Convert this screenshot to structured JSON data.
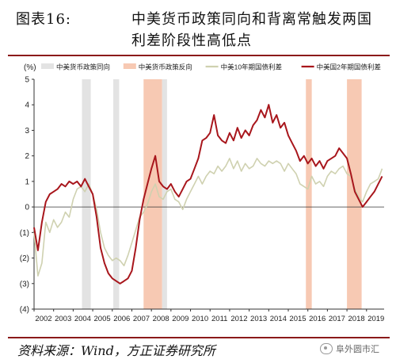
{
  "header": {
    "prefix": "图表16:",
    "title_line1": "中美货币政策同向和背离常触发两国",
    "title_line2": "利差阶段性高低点"
  },
  "footer": {
    "source": "资料来源：Wind，方正证券研究所",
    "watermark": "阜外圆市汇"
  },
  "colors": {
    "same_direction_band": "#e3e3e3",
    "opposite_direction_band": "#f7c9b3",
    "us10y_line": "#cfd1b0",
    "us2y_line": "#a8161c",
    "rule": "#8b1a1a"
  },
  "chart_data": {
    "type": "line",
    "ylabel": "(%)",
    "ylim": [
      -4,
      5
    ],
    "yticks": [
      -4,
      -3,
      -2,
      -1,
      0,
      1,
      2,
      3,
      4,
      5
    ],
    "ytick_labels": [
      "(4)",
      "(3)",
      "(2)",
      "(1)",
      "0",
      "1",
      "2",
      "3",
      "4",
      "5"
    ],
    "xlim": [
      2002.0,
      2019.9
    ],
    "xticks": [
      2002,
      2003,
      2004,
      2005,
      2006,
      2007,
      2008,
      2009,
      2010,
      2011,
      2012,
      2013,
      2014,
      2015,
      2016,
      2017,
      2018,
      2019
    ],
    "xtick_labels": [
      "2002",
      "2003",
      "2004",
      "2005",
      "2006",
      "2007",
      "2008",
      "2009",
      "2010",
      "2011",
      "2012",
      "2013",
      "2014",
      "2015",
      "2016",
      "2017",
      "2018",
      "2019"
    ],
    "legend": [
      {
        "label": "中美货币政策同向",
        "kind": "band",
        "color": "#e3e3e3"
      },
      {
        "label": "中美货币政策反向",
        "kind": "band",
        "color": "#f7c9b3"
      },
      {
        "label": "中美10年期国债利差",
        "kind": "line",
        "color": "#cfd1b0"
      },
      {
        "label": "中美国2年期国债利差",
        "kind": "line",
        "color": "#a8161c"
      }
    ],
    "legend_position": "top",
    "bands": [
      {
        "type": "same",
        "from": 2004.45,
        "to": 2004.9
      },
      {
        "type": "same",
        "from": 2006.05,
        "to": 2006.35
      },
      {
        "type": "opposite",
        "from": 2007.6,
        "to": 2008.55
      },
      {
        "type": "same",
        "from": 2008.55,
        "to": 2008.8
      },
      {
        "type": "opposite",
        "from": 2015.9,
        "to": 2016.2
      },
      {
        "type": "opposite",
        "from": 2018.0,
        "to": 2018.75
      }
    ],
    "series": [
      {
        "name": "中美10年期国债利差",
        "color": "#cfd1b0",
        "x": [
          2002.0,
          2002.2,
          2002.4,
          2002.6,
          2002.8,
          2003.0,
          2003.2,
          2003.4,
          2003.6,
          2003.8,
          2004.0,
          2004.2,
          2004.4,
          2004.6,
          2004.8,
          2005.0,
          2005.2,
          2005.4,
          2005.6,
          2005.8,
          2006.0,
          2006.2,
          2006.4,
          2006.6,
          2006.8,
          2007.0,
          2007.2,
          2007.4,
          2007.6,
          2007.8,
          2008.0,
          2008.2,
          2008.4,
          2008.6,
          2008.8,
          2009.0,
          2009.2,
          2009.4,
          2009.6,
          2009.8,
          2010.0,
          2010.2,
          2010.4,
          2010.6,
          2010.8,
          2011.0,
          2011.2,
          2011.4,
          2011.6,
          2011.8,
          2012.0,
          2012.2,
          2012.4,
          2012.6,
          2012.8,
          2013.0,
          2013.2,
          2013.4,
          2013.6,
          2013.8,
          2014.0,
          2014.2,
          2014.4,
          2014.6,
          2014.8,
          2015.0,
          2015.2,
          2015.4,
          2015.6,
          2015.8,
          2016.0,
          2016.2,
          2016.4,
          2016.6,
          2016.8,
          2017.0,
          2017.2,
          2017.4,
          2017.6,
          2017.8,
          2018.0,
          2018.2,
          2018.4,
          2018.6,
          2018.8,
          2019.0,
          2019.2,
          2019.4,
          2019.6,
          2019.8
        ],
        "y": [
          -1.0,
          -2.7,
          -2.2,
          -0.6,
          -1.0,
          -0.5,
          -0.8,
          -0.6,
          -0.2,
          -0.4,
          0.3,
          0.7,
          0.8,
          0.6,
          0.9,
          0.5,
          -0.1,
          -1.0,
          -1.6,
          -1.9,
          -2.1,
          -2.0,
          -2.1,
          -2.3,
          -1.9,
          -1.4,
          -0.9,
          -0.4,
          -0.2,
          0.1,
          0.6,
          0.9,
          0.4,
          0.3,
          0.6,
          0.7,
          0.3,
          0.2,
          -0.1,
          0.3,
          0.6,
          0.9,
          1.2,
          0.9,
          1.2,
          1.4,
          1.3,
          1.6,
          1.4,
          1.6,
          1.9,
          1.5,
          1.8,
          1.4,
          1.7,
          1.5,
          1.6,
          1.9,
          1.7,
          1.6,
          1.8,
          1.7,
          1.8,
          1.7,
          1.4,
          1.7,
          1.5,
          1.3,
          0.9,
          0.8,
          0.7,
          1.2,
          0.9,
          1.0,
          0.8,
          1.2,
          1.4,
          1.3,
          1.5,
          1.6,
          1.3,
          1.2,
          0.7,
          0.4,
          0.2,
          0.6,
          0.9,
          1.0,
          1.1,
          1.5
        ]
      },
      {
        "name": "中美国2年期国债利差",
        "color": "#a8161c",
        "x": [
          2002.0,
          2002.2,
          2002.4,
          2002.6,
          2002.8,
          2003.0,
          2003.2,
          2003.4,
          2003.6,
          2003.8,
          2004.0,
          2004.2,
          2004.4,
          2004.6,
          2004.8,
          2005.0,
          2005.2,
          2005.4,
          2005.6,
          2005.8,
          2006.0,
          2006.2,
          2006.4,
          2006.6,
          2006.8,
          2007.0,
          2007.2,
          2007.4,
          2007.6,
          2007.8,
          2008.0,
          2008.2,
          2008.4,
          2008.6,
          2008.8,
          2009.0,
          2009.2,
          2009.4,
          2009.6,
          2009.8,
          2010.0,
          2010.2,
          2010.4,
          2010.6,
          2010.8,
          2011.0,
          2011.2,
          2011.4,
          2011.6,
          2011.8,
          2012.0,
          2012.2,
          2012.4,
          2012.6,
          2012.8,
          2013.0,
          2013.2,
          2013.4,
          2013.6,
          2013.8,
          2014.0,
          2014.2,
          2014.4,
          2014.6,
          2014.8,
          2015.0,
          2015.2,
          2015.4,
          2015.6,
          2015.8,
          2016.0,
          2016.2,
          2016.4,
          2016.6,
          2016.8,
          2017.0,
          2017.2,
          2017.4,
          2017.6,
          2017.8,
          2018.0,
          2018.2,
          2018.4,
          2018.6,
          2018.8,
          2019.0,
          2019.2,
          2019.4,
          2019.6,
          2019.8
        ],
        "y": [
          -0.8,
          -1.7,
          -0.6,
          0.2,
          0.5,
          0.6,
          0.7,
          0.9,
          0.8,
          1.0,
          0.9,
          1.0,
          0.8,
          1.1,
          0.8,
          0.5,
          -0.4,
          -1.6,
          -2.2,
          -2.6,
          -2.8,
          -2.9,
          -3.0,
          -2.9,
          -2.8,
          -2.5,
          -1.6,
          -0.5,
          0.3,
          0.9,
          1.5,
          2.0,
          1.0,
          0.8,
          0.7,
          0.9,
          0.6,
          0.4,
          0.7,
          1.0,
          1.1,
          1.5,
          1.9,
          2.6,
          2.7,
          2.9,
          3.6,
          2.8,
          2.6,
          2.5,
          2.9,
          2.6,
          3.1,
          2.7,
          3.0,
          2.8,
          3.2,
          3.4,
          3.8,
          3.5,
          4.0,
          3.3,
          3.6,
          3.1,
          3.3,
          2.8,
          2.5,
          2.2,
          1.8,
          2.0,
          1.7,
          1.9,
          1.6,
          1.8,
          1.5,
          1.8,
          1.9,
          2.0,
          2.3,
          2.1,
          1.9,
          1.3,
          0.6,
          0.3,
          0.0,
          0.2,
          0.4,
          0.6,
          0.9,
          1.2
        ]
      }
    ]
  }
}
